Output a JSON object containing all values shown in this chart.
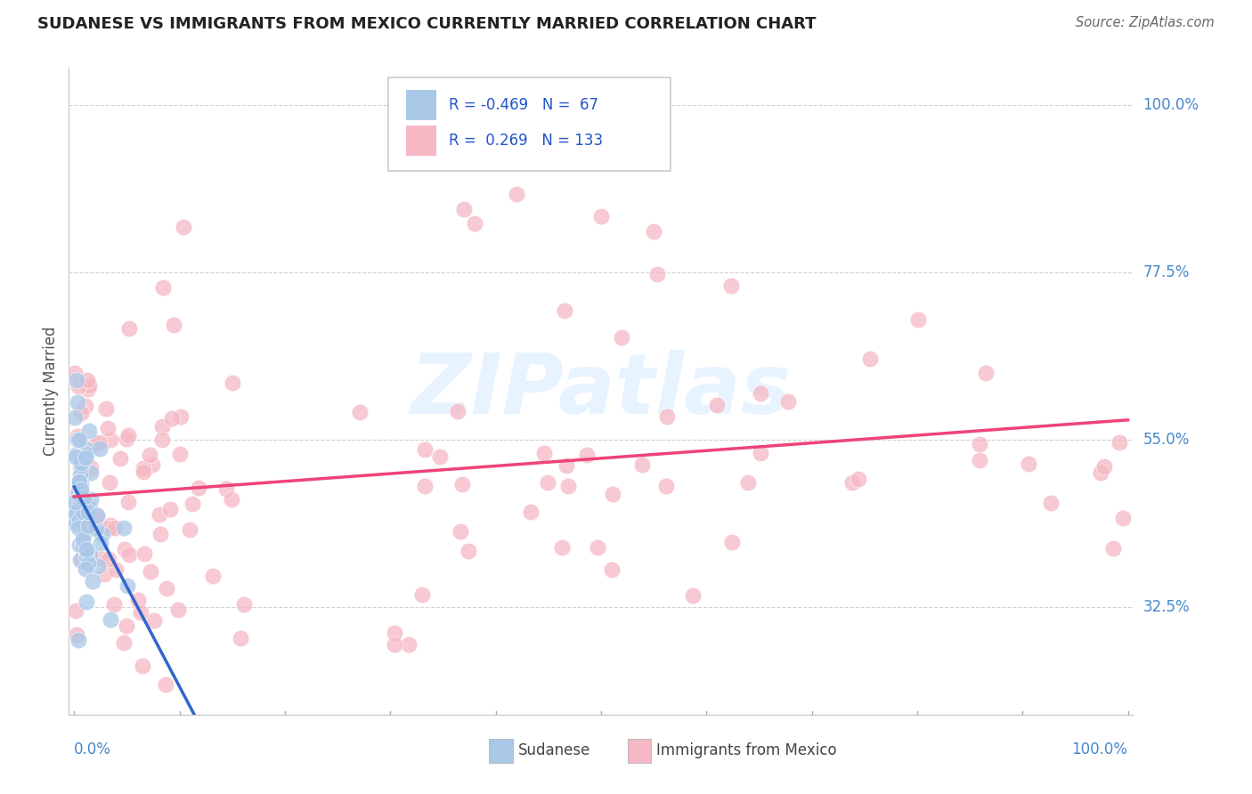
{
  "title": "SUDANESE VS IMMIGRANTS FROM MEXICO CURRENTLY MARRIED CORRELATION CHART",
  "source": "Source: ZipAtlas.com",
  "ylabel": "Currently Married",
  "y_ticks": [
    0.325,
    0.55,
    0.775,
    1.0
  ],
  "y_tick_labels": [
    "32.5%",
    "55.0%",
    "77.5%",
    "100.0%"
  ],
  "blue_color": "#aac8e8",
  "pink_color": "#f5b8c4",
  "line_blue": "#3366cc",
  "line_pink": "#ee4477",
  "background": "#ffffff",
  "legend_blue_r": "R = -0.469",
  "legend_blue_n": "N =  67",
  "legend_pink_r": "R =  0.269",
  "legend_pink_n": "N = 133",
  "xlim_min": 0.0,
  "xlim_max": 1.0,
  "ylim_min": 0.18,
  "ylim_max": 1.05,
  "watermark_text": "ZIPatlas",
  "watermark_color": "#ddeeff"
}
